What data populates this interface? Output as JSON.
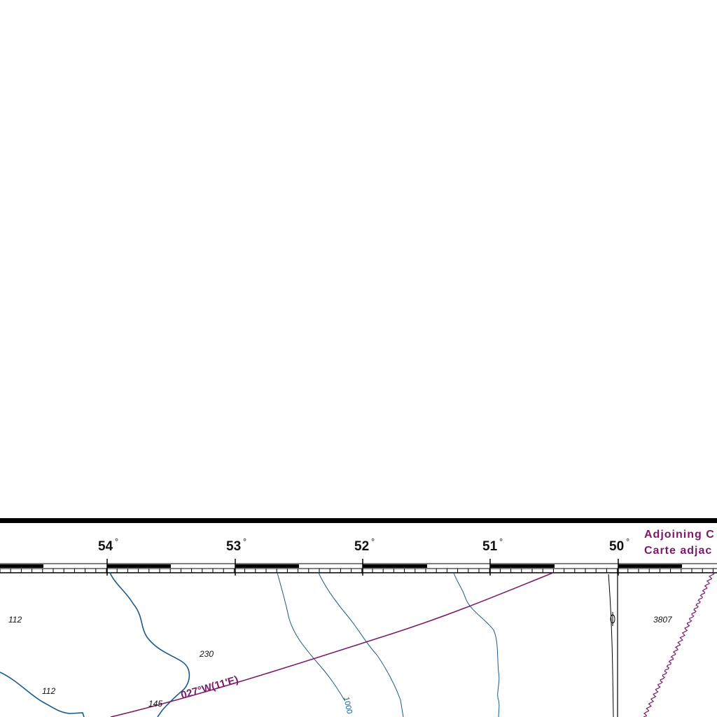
{
  "border": {
    "longitudes": [
      "54",
      "53",
      "52",
      "51",
      "50"
    ],
    "degree_symbol": "°"
  },
  "adjoining_note": {
    "line1": "Adjoining C",
    "line2": "Carte adjac"
  },
  "depth_soundings": [
    "112",
    "230",
    "112",
    "145",
    "3807"
  ],
  "contour_labels": [
    "1000"
  ],
  "magnetic_variation": "027°W(11'E)",
  "colors": {
    "frame": "#000000",
    "contour": "#1a5a8a",
    "magenta": "#7a1a6a",
    "text": "#111111"
  },
  "icons": [
    "buoy-icon"
  ]
}
